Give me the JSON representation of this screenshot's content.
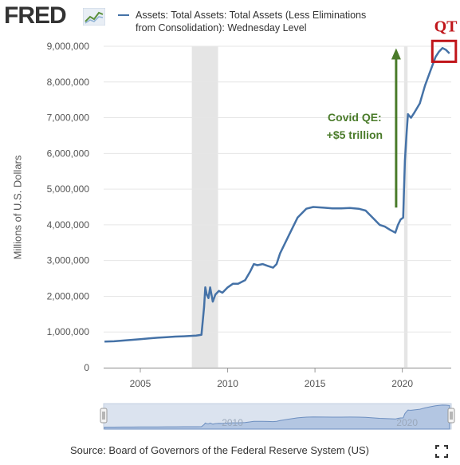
{
  "header": {
    "logo_text": "FRED",
    "logo_icon": "chart-line-icon",
    "legend_label": "Assets: Total Assets: Total Assets (Less Eliminations from Consolidation): Wednesday Level"
  },
  "colors": {
    "series": "#4572a7",
    "recession": "#e5e5e5",
    "annotation_arrow": "#4a7b2a",
    "qt_box": "#c0151a"
  },
  "chart_data": {
    "type": "line",
    "title": "",
    "xlabel": "",
    "ylabel": "Millions of U.S. Dollars",
    "xlim": [
      2002.9,
      2022.8
    ],
    "ylim": [
      0,
      9000000
    ],
    "x_ticks": [
      2005,
      2010,
      2015,
      2020
    ],
    "x_tick_labels": [
      "2005",
      "2010",
      "2015",
      "2020"
    ],
    "y_ticks": [
      0,
      1000000,
      2000000,
      3000000,
      4000000,
      5000000,
      6000000,
      7000000,
      8000000,
      9000000
    ],
    "y_tick_labels": [
      "0",
      "1,000,000",
      "2,000,000",
      "3,000,000",
      "4,000,000",
      "5,000,000",
      "6,000,000",
      "7,000,000",
      "8,000,000",
      "9,000,000"
    ],
    "grid": true,
    "legend_position": "top",
    "recessions": [
      [
        2007.95,
        2009.45
      ],
      [
        2020.1,
        2020.3
      ]
    ],
    "series": [
      {
        "name": "Assets: Total Assets: Total Assets (Less Eliminations from Consolidation): Wednesday Level",
        "x": [
          2002.95,
          2003.5,
          2004.0,
          2004.5,
          2005.0,
          2005.5,
          2006.0,
          2006.5,
          2007.0,
          2007.5,
          2007.9,
          2008.2,
          2008.5,
          2008.65,
          2008.72,
          2008.8,
          2008.9,
          2009.0,
          2009.15,
          2009.3,
          2009.5,
          2009.7,
          2010.0,
          2010.3,
          2010.6,
          2011.0,
          2011.3,
          2011.5,
          2011.7,
          2012.0,
          2012.3,
          2012.6,
          2012.8,
          2013.0,
          2013.5,
          2014.0,
          2014.5,
          2014.9,
          2015.5,
          2016.0,
          2016.5,
          2017.0,
          2017.5,
          2017.9,
          2018.3,
          2018.7,
          2019.0,
          2019.3,
          2019.6,
          2019.75,
          2019.9,
          2020.05,
          2020.15,
          2020.25,
          2020.32,
          2020.4,
          2020.5,
          2020.7,
          2021.0,
          2021.3,
          2021.6,
          2021.9,
          2022.1,
          2022.3,
          2022.5,
          2022.7
        ],
        "values": [
          730000,
          740000,
          760000,
          780000,
          800000,
          820000,
          840000,
          855000,
          870000,
          880000,
          890000,
          900000,
          920000,
          1700000,
          2250000,
          2050000,
          1950000,
          2250000,
          1850000,
          2050000,
          2150000,
          2100000,
          2250000,
          2350000,
          2350000,
          2450000,
          2700000,
          2900000,
          2870000,
          2900000,
          2850000,
          2800000,
          2900000,
          3200000,
          3700000,
          4200000,
          4450000,
          4500000,
          4480000,
          4460000,
          4460000,
          4470000,
          4450000,
          4400000,
          4200000,
          4000000,
          3950000,
          3860000,
          3780000,
          4000000,
          4150000,
          4200000,
          5800000,
          6600000,
          7100000,
          7050000,
          7000000,
          7150000,
          7400000,
          7900000,
          8300000,
          8700000,
          8850000,
          8950000,
          8900000,
          8800000
        ]
      }
    ],
    "annotations": [
      {
        "text_line1": "Covid QE:",
        "text_line2": "+$5 trillion",
        "x": 2019.6,
        "y_start": 4350000,
        "y_end": 8900000
      },
      {
        "text": "QT",
        "x_range": [
          2021.9,
          2022.7
        ],
        "y_range": [
          8700000,
          9150000
        ]
      }
    ]
  },
  "range_slider": {
    "labels": [
      "2010",
      "2020"
    ],
    "left_handle_icon": "slider-handle-icon",
    "right_handle_icon": "slider-handle-icon"
  },
  "footer": {
    "source_text": "Source: Board of Governors of the Federal Reserve System (US)",
    "fullscreen_icon": "fullscreen-icon"
  }
}
